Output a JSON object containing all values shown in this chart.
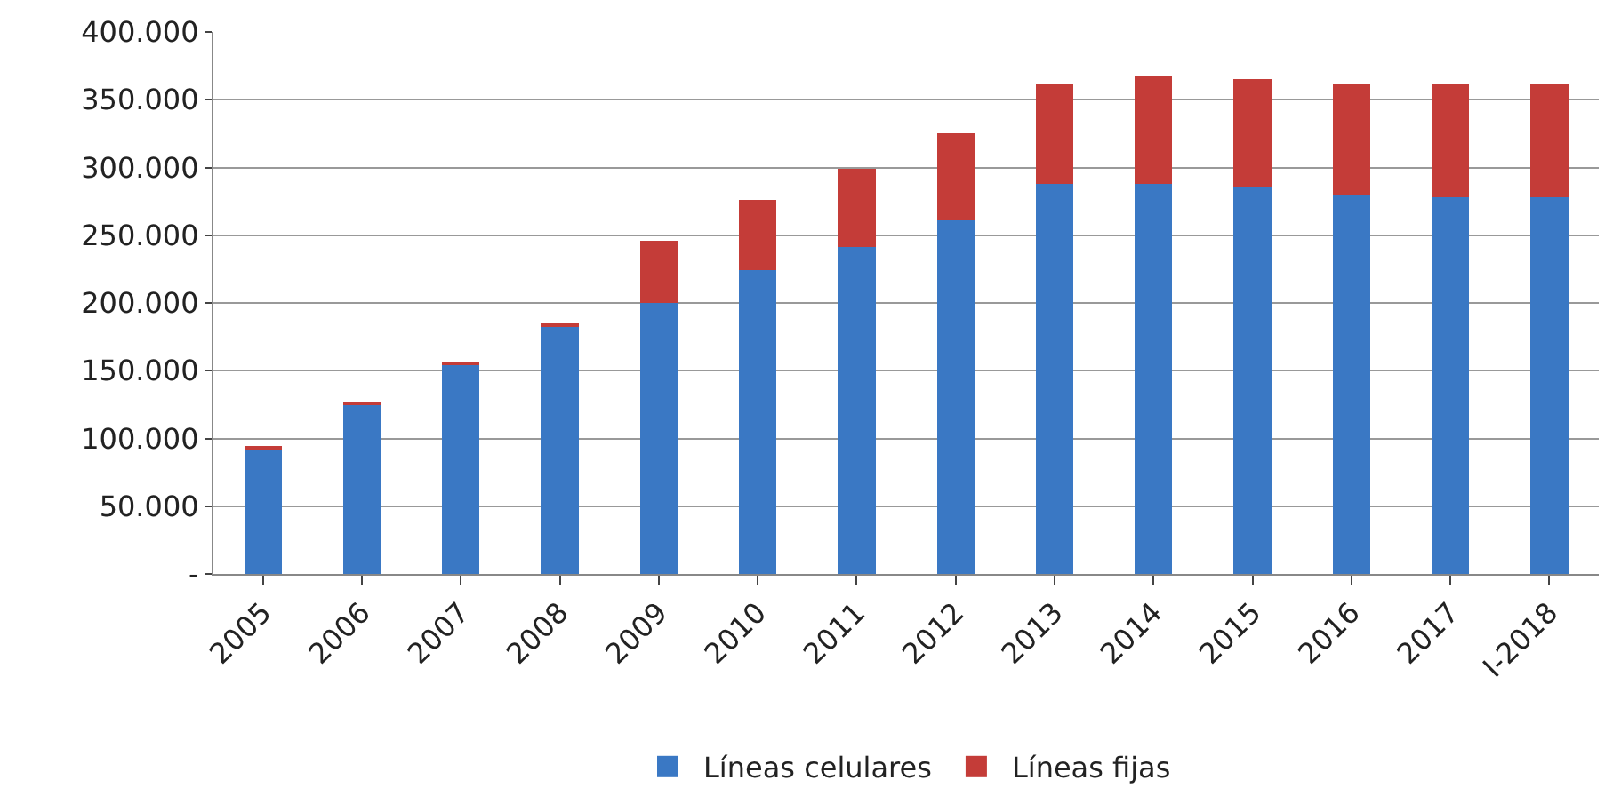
{
  "chart_data": {
    "type": "bar",
    "stacked": true,
    "categories": [
      "2005",
      "2006",
      "2007",
      "2008",
      "2009",
      "2010",
      "2011",
      "2012",
      "2013",
      "2014",
      "2015",
      "2016",
      "2017",
      "I-2018"
    ],
    "series": [
      {
        "name": "Líneas celulares",
        "color": "#3a78c4",
        "values": [
          93000,
          125000,
          154000,
          182000,
          200000,
          224000,
          241000,
          261000,
          288000,
          288000,
          285000,
          280000,
          278000,
          278000
        ]
      },
      {
        "name": "Líneas fijas",
        "color": "#c43c38",
        "values": [
          1000,
          1000,
          3000,
          3000,
          46000,
          52000,
          58000,
          64000,
          74000,
          80000,
          80000,
          82000,
          83000,
          83000
        ]
      }
    ],
    "ylim": [
      0,
      400000
    ],
    "yticks": [
      {
        "value": 0,
        "label": "-"
      },
      {
        "value": 50000,
        "label": "50.000"
      },
      {
        "value": 100000,
        "label": "100.000"
      },
      {
        "value": 150000,
        "label": "150.000"
      },
      {
        "value": 200000,
        "label": "200.000"
      },
      {
        "value": 250000,
        "label": "250.000"
      },
      {
        "value": 300000,
        "label": "300.000"
      },
      {
        "value": 350000,
        "label": "350.000"
      },
      {
        "value": 400000,
        "label": "400.000"
      }
    ],
    "grid": "y",
    "legend": "bottom"
  }
}
